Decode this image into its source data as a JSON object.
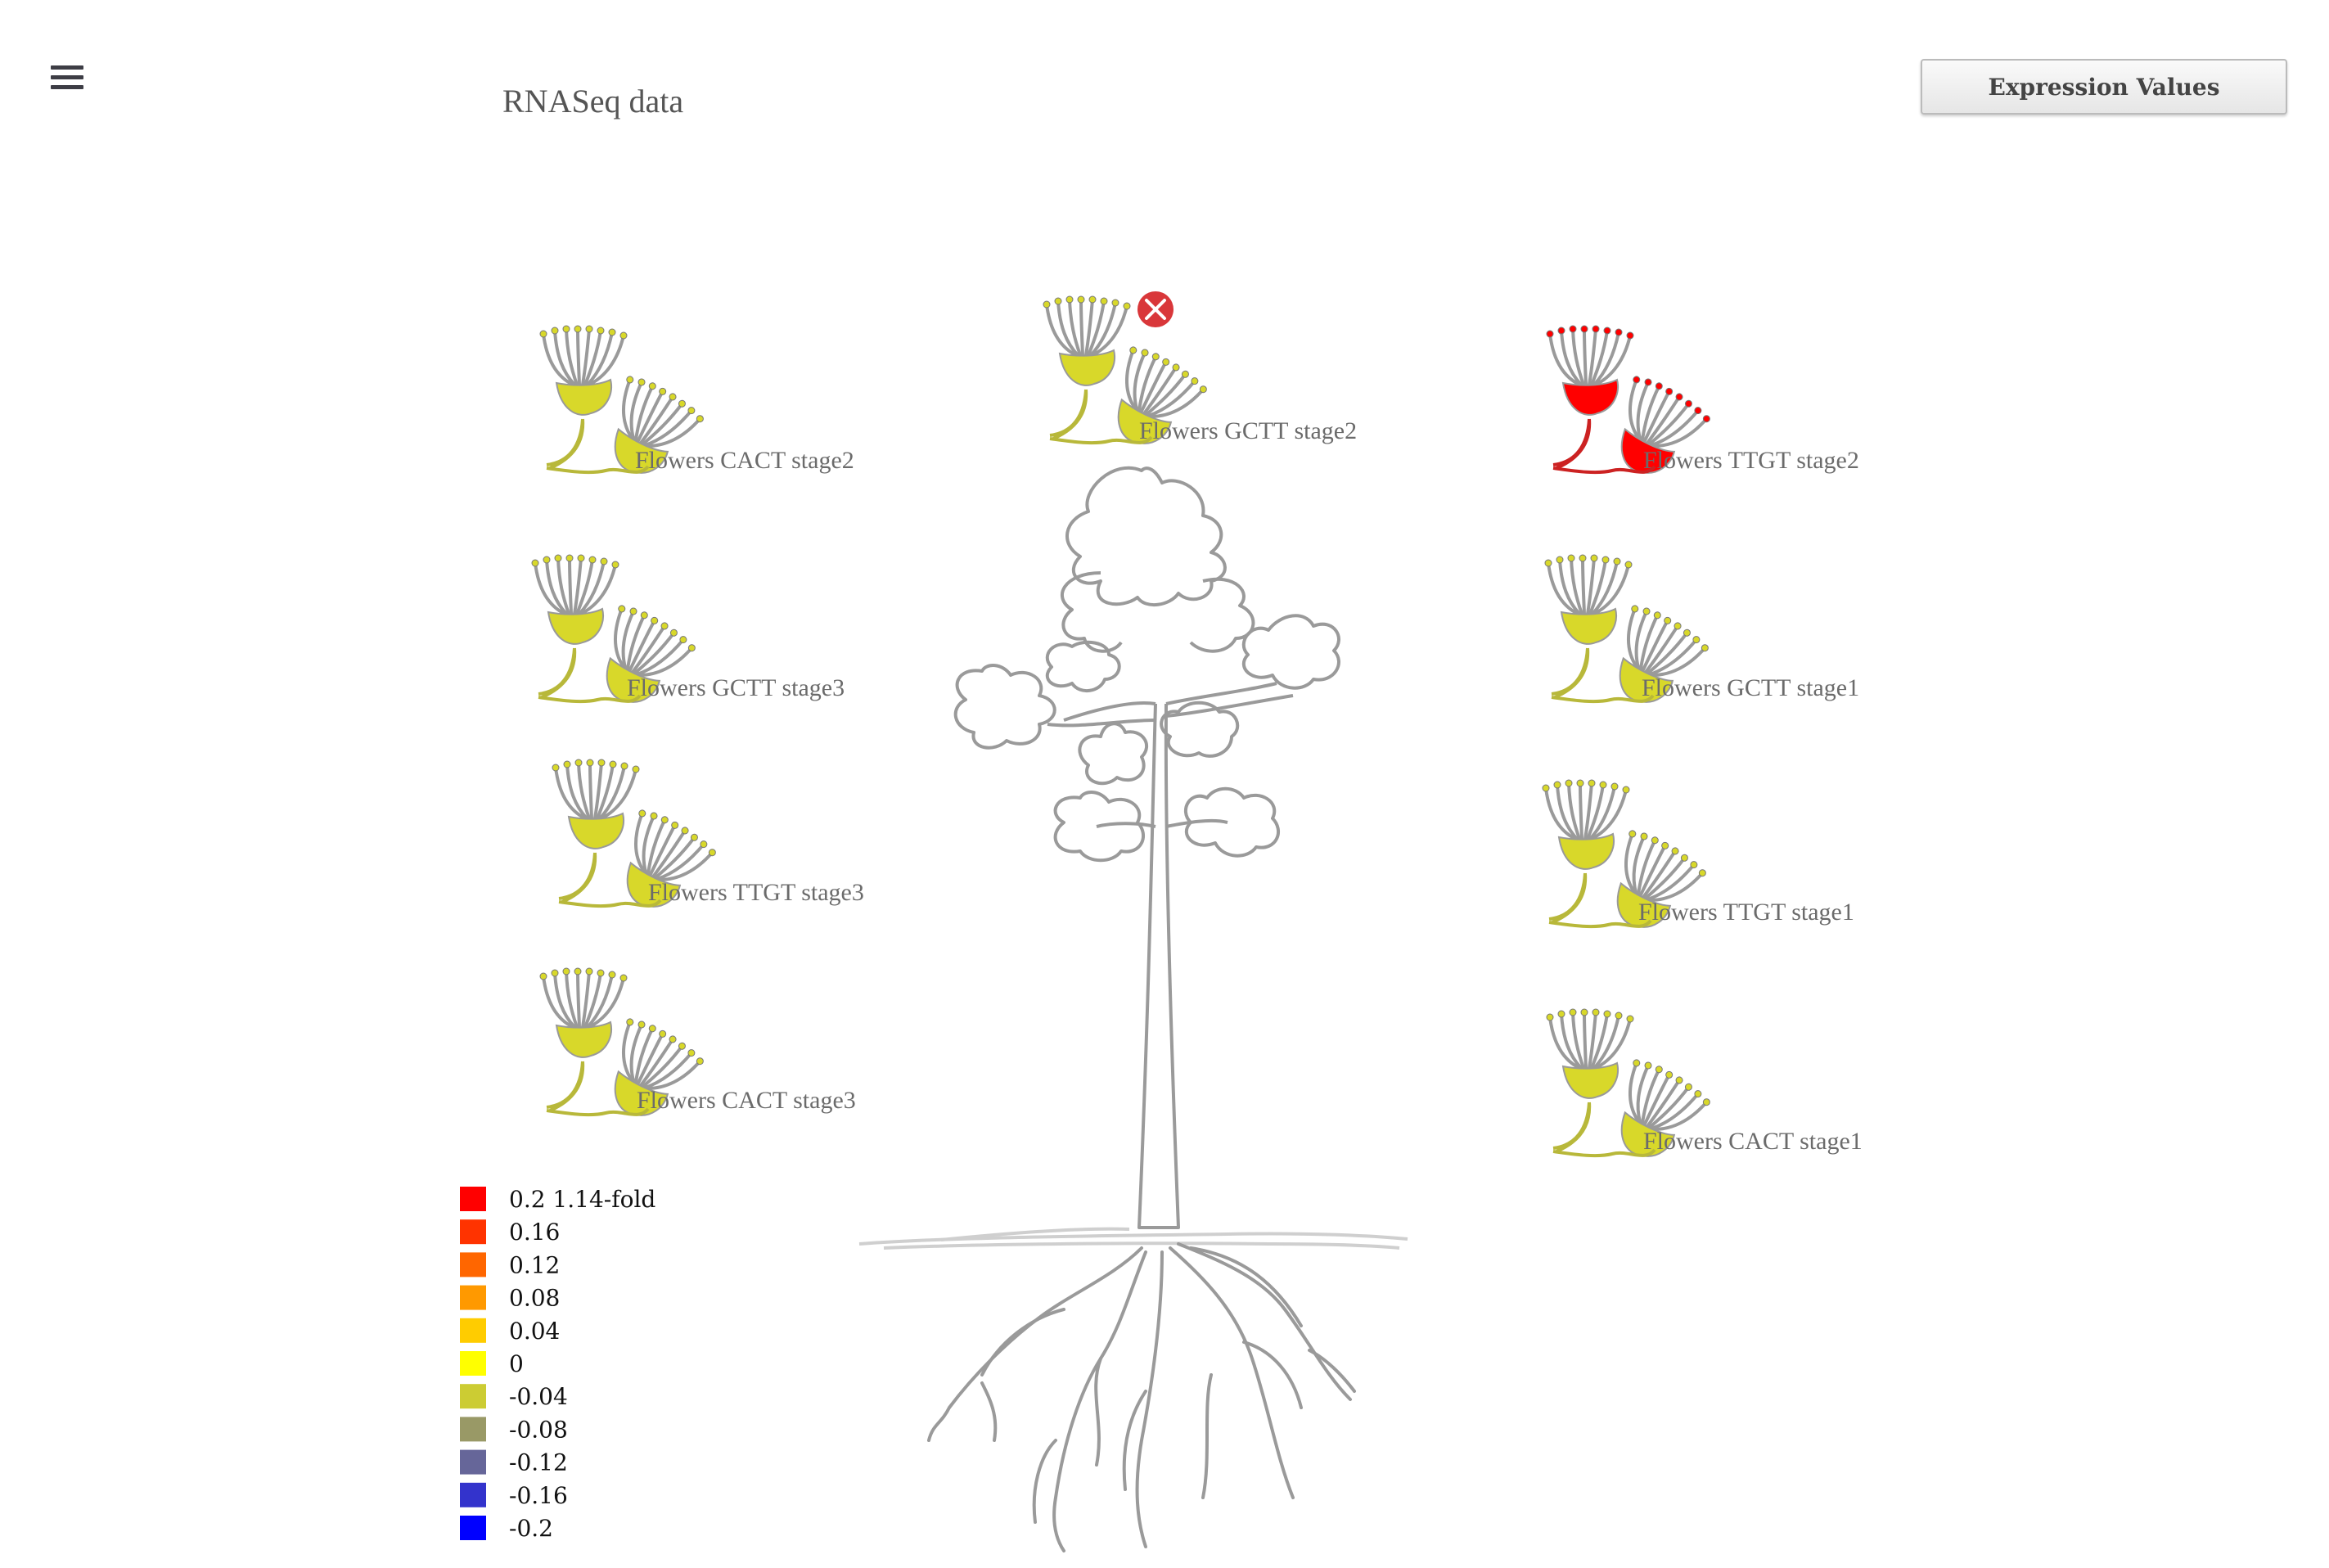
{
  "header": {
    "menu_icon": "hamburger-menu-icon",
    "title": "RNASeq data",
    "expression_button": "Expression Values"
  },
  "close_icon": "close-x-icon",
  "samples": [
    {
      "label": "Flowers CACT stage2",
      "color": "#d8d82a",
      "value": -0.04
    },
    {
      "label": "Flowers GCTT stage2",
      "color": "#d8d82a",
      "value": -0.04,
      "selected": true
    },
    {
      "label": "Flowers TTGT stage2",
      "color": "#ff0000",
      "value": 0.2
    },
    {
      "label": "Flowers GCTT stage3",
      "color": "#d8d82a",
      "value": -0.04
    },
    {
      "label": "Flowers GCTT stage1",
      "color": "#d8d82a",
      "value": -0.04
    },
    {
      "label": "Flowers TTGT stage3",
      "color": "#d8d82a",
      "value": -0.04
    },
    {
      "label": "Flowers TTGT stage1",
      "color": "#d8d82a",
      "value": -0.04
    },
    {
      "label": "Flowers CACT stage3",
      "color": "#d8d82a",
      "value": -0.04
    },
    {
      "label": "Flowers CACT stage1",
      "color": "#d8d82a",
      "value": -0.04
    }
  ],
  "legend": [
    {
      "label": "0.2 1.14-fold",
      "color": "#ff0000"
    },
    {
      "label": "0.16",
      "color": "#ff3300"
    },
    {
      "label": "0.12",
      "color": "#ff6600"
    },
    {
      "label": "0.08",
      "color": "#ff9900"
    },
    {
      "label": "0.04",
      "color": "#ffcc00"
    },
    {
      "label": "0",
      "color": "#ffff00"
    },
    {
      "label": "-0.04",
      "color": "#cccc33"
    },
    {
      "label": "-0.08",
      "color": "#999966"
    },
    {
      "label": "-0.12",
      "color": "#666699"
    },
    {
      "label": "-0.16",
      "color": "#3333cc"
    },
    {
      "label": "-0.2",
      "color": "#0000ff"
    }
  ]
}
